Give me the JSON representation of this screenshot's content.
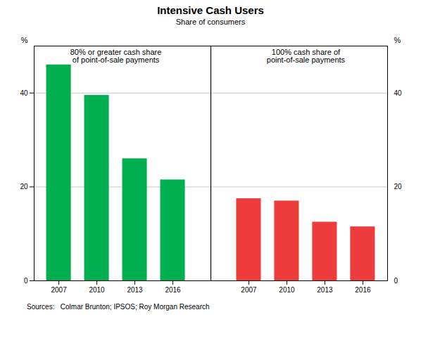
{
  "chart_data": {
    "type": "bar",
    "title": "Intensive Cash Users",
    "subtitle": "Share of consumers",
    "categories": [
      "2007",
      "2010",
      "2013",
      "2016",
      "2007",
      "2010",
      "2013",
      "2016"
    ],
    "series": [
      {
        "color": "#00B050",
        "values": [
          46,
          39.5,
          26,
          21.5,
          null,
          null,
          null,
          null
        ]
      },
      {
        "color": "#EE3B3B",
        "values": [
          null,
          null,
          null,
          null,
          17.5,
          17,
          12.5,
          11.5
        ]
      }
    ],
    "annotations": [
      "80% or greater cash share\nof point-of-sale payments",
      "100% cash share of\npoint-of-sale payments"
    ],
    "y_label": "%",
    "y2_label": "%",
    "ylim": [
      0,
      50
    ],
    "yticks": [
      0,
      20,
      40
    ],
    "y2lim": [
      0,
      50
    ],
    "y2ticks": [
      0,
      20,
      40
    ],
    "grid": true,
    "source": "Sources:   Colmar Brunton; IPSOS; Roy Morgan Research"
  }
}
